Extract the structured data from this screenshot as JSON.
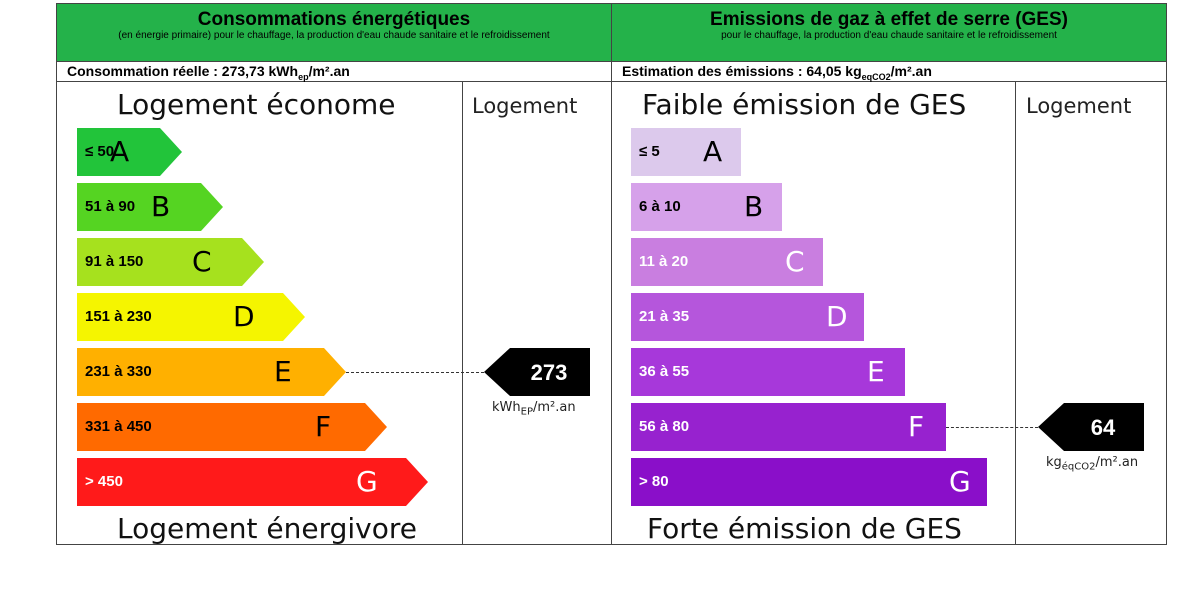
{
  "chart_data": [
    {
      "type": "bar",
      "header_title": "Consommations énergétiques",
      "header_subtitle": "(en énergie primaire) pour le chauffage, la production d'eau chaude sanitaire et le refroidissement",
      "real_label": "Consommation réelle : 273,73 kWh",
      "real_sub": "ep",
      "real_unit_tail": "/m².an",
      "top_label": "Logement économe",
      "bottom_label": "Logement énergivore",
      "column_title": "Logement",
      "categories": [
        "≤ 50",
        "51 à 90",
        "91 à 150",
        "151 à 230",
        "231 à 330",
        "331 à 450",
        "> 450"
      ],
      "letters": [
        "A",
        "B",
        "C",
        "D",
        "E",
        "F",
        "G"
      ],
      "colors": [
        "#22c43a",
        "#55d422",
        "#a6e11e",
        "#f5f500",
        "#ffb000",
        "#ff6a00",
        "#ff1a1a"
      ],
      "value": 273,
      "value_category_index": 4,
      "value_unit_main": "kWh",
      "value_unit_sub": "EP",
      "value_unit_tail": "/m².an"
    },
    {
      "type": "bar",
      "header_title": "Emissions de gaz à effet de serre (GES)",
      "header_subtitle": "pour le chauffage, la production d'eau chaude sanitaire et le refroidissement",
      "real_label": "Estimation des émissions : 64,05 kg",
      "real_sub": "eqCO2",
      "real_unit_tail": "/m².an",
      "top_label": "Faible émission de GES",
      "bottom_label": "Forte émission de GES",
      "column_title": "Logement",
      "categories": [
        "≤ 5",
        "6 à 10",
        "11 à 20",
        "21 à 35",
        "36 à 55",
        "56 à 80",
        "> 80"
      ],
      "letters": [
        "A",
        "B",
        "C",
        "D",
        "E",
        "F",
        "G"
      ],
      "colors": [
        "#dcc9ec",
        "#d6a1ea",
        "#c97ee0",
        "#b556dc",
        "#a738da",
        "#9722cf",
        "#8a0fc9"
      ],
      "value": 64,
      "value_category_index": 5,
      "value_unit_main": "kg",
      "value_unit_sub": "éqCO2",
      "value_unit_tail": "/m².an"
    }
  ]
}
